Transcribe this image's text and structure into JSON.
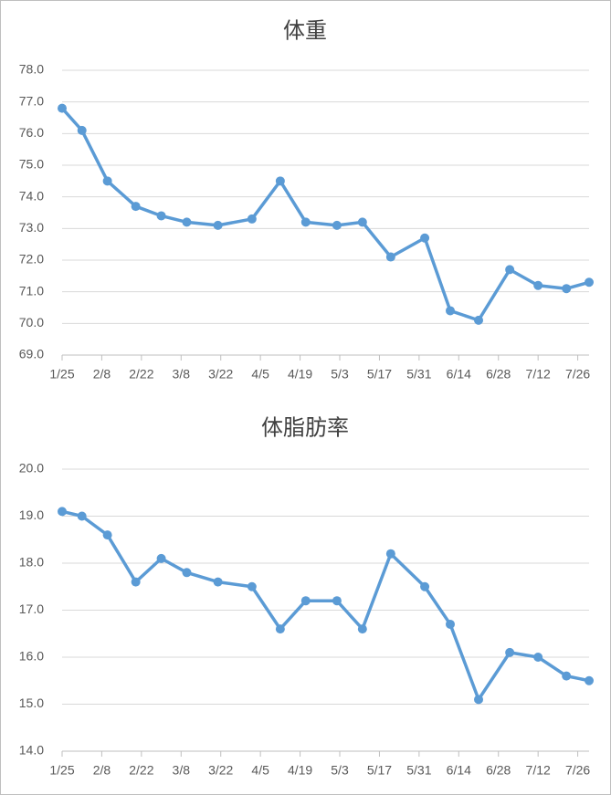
{
  "chart_data": [
    {
      "type": "line",
      "title": "体重",
      "x": [
        "1/25",
        "2/1",
        "2/10",
        "2/20",
        "3/1",
        "3/10",
        "3/21",
        "4/2",
        "4/12",
        "4/21",
        "5/2",
        "5/11",
        "5/21",
        "6/2",
        "6/11",
        "6/21",
        "7/2",
        "7/12",
        "7/22",
        "7/30"
      ],
      "series": [
        {
          "name": "体重",
          "color": "#5b9bd5",
          "values": [
            76.8,
            76.1,
            74.5,
            73.7,
            73.4,
            73.2,
            73.1,
            73.3,
            74.5,
            73.2,
            73.1,
            73.2,
            72.1,
            72.7,
            70.4,
            70.1,
            71.7,
            71.2,
            71.1,
            71.3
          ]
        }
      ],
      "xlim": [
        "1/25",
        "7/30"
      ],
      "xticks": [
        "1/25",
        "2/8",
        "2/22",
        "3/8",
        "3/22",
        "4/5",
        "4/19",
        "5/3",
        "5/17",
        "5/31",
        "6/14",
        "6/28",
        "7/12",
        "7/26"
      ],
      "ylim": [
        69,
        78
      ],
      "yticks": [
        {
          "value": 69,
          "label": "69.0"
        },
        {
          "value": 70,
          "label": "70.0"
        },
        {
          "value": 71,
          "label": "71.0"
        },
        {
          "value": 72,
          "label": "72.0"
        },
        {
          "value": 73,
          "label": "73.0"
        },
        {
          "value": 74,
          "label": "74.0"
        },
        {
          "value": 75,
          "label": "75.0"
        },
        {
          "value": 76,
          "label": "76.0"
        },
        {
          "value": 77,
          "label": "77.0"
        },
        {
          "value": 78,
          "label": "78.0"
        }
      ],
      "grid": true
    },
    {
      "type": "line",
      "title": "体脂肪率",
      "x": [
        "1/25",
        "2/1",
        "2/10",
        "2/20",
        "3/1",
        "3/10",
        "3/21",
        "4/2",
        "4/12",
        "4/21",
        "5/2",
        "5/11",
        "5/21",
        "6/2",
        "6/11",
        "6/21",
        "7/2",
        "7/12",
        "7/22",
        "7/30"
      ],
      "series": [
        {
          "name": "体脂肪率",
          "color": "#5b9bd5",
          "values": [
            19.1,
            19.0,
            18.6,
            17.6,
            18.1,
            17.8,
            17.6,
            17.5,
            16.6,
            17.2,
            17.2,
            16.6,
            18.2,
            17.5,
            16.7,
            15.1,
            16.1,
            16.0,
            15.6,
            15.5
          ]
        }
      ],
      "xlim": [
        "1/25",
        "7/30"
      ],
      "xticks": [
        "1/25",
        "2/8",
        "2/22",
        "3/8",
        "3/22",
        "4/5",
        "4/19",
        "5/3",
        "5/17",
        "5/31",
        "6/14",
        "6/28",
        "7/12",
        "7/26"
      ],
      "ylim": [
        14,
        20
      ],
      "yticks": [
        {
          "value": 14,
          "label": "14.0"
        },
        {
          "value": 15,
          "label": "15.0"
        },
        {
          "value": 16,
          "label": "16.0"
        },
        {
          "value": 17,
          "label": "17.0"
        },
        {
          "value": 18,
          "label": "18.0"
        },
        {
          "value": 19,
          "label": "19.0"
        },
        {
          "value": 20,
          "label": "20.0"
        }
      ],
      "grid": true
    }
  ]
}
